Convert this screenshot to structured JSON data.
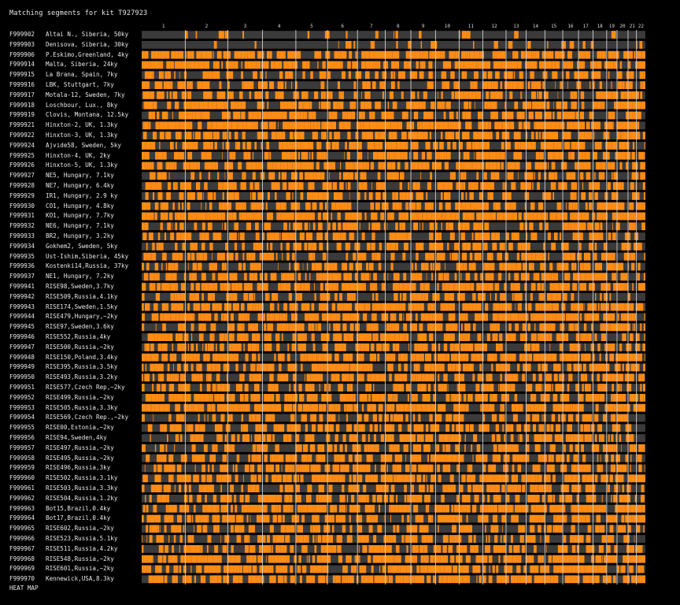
{
  "title": "Matching segments for kit T927923",
  "chromosome_labels": [
    "1",
    "2",
    "3",
    "4",
    "5",
    "6",
    "7",
    "8",
    "9",
    "10",
    "11",
    "12",
    "13",
    "14",
    "15",
    "16",
    "17",
    "18",
    "19",
    "20",
    "21",
    "22"
  ],
  "colors": {
    "match": "#ff8c14",
    "nomatch": "#3a3a3a",
    "background": "#000000",
    "chromosome_divider": "#cfcfcf",
    "heat_low": "#2a2ad8",
    "heat_high": "#d8305a"
  },
  "rows": [
    {
      "kit": "F999902",
      "name": "Altai N., Siberia, 50ky"
    },
    {
      "kit": "F999903",
      "name": "Denisova, Siberia, 30ky"
    },
    {
      "kit": "F999906",
      "name": "P.Eskimo,Greenland, 4ky"
    },
    {
      "kit": "F999914",
      "name": "Malta, Siberia, 24ky"
    },
    {
      "kit": "F999915",
      "name": "La Brana, Spain, 7ky"
    },
    {
      "kit": "F999916",
      "name": "LBK, Stuttgart, 7ky"
    },
    {
      "kit": "F999917",
      "name": "Motala-12, Sweden, 7ky"
    },
    {
      "kit": "F999918",
      "name": "Loschbour, Lux., 8ky"
    },
    {
      "kit": "F999919",
      "name": "Clovis, Montana, 12.5ky"
    },
    {
      "kit": "F999921",
      "name": "Hinxton-2, UK, 1.3ky"
    },
    {
      "kit": "F999922",
      "name": "Hinxton-3, UK, 1.3ky"
    },
    {
      "kit": "F999924",
      "name": "Ajvide58, Sweden, 5ky"
    },
    {
      "kit": "F999925",
      "name": "Hinxton-4, UK, 2ky"
    },
    {
      "kit": "F999926",
      "name": "Hinxton-5, UK, 1.3ky"
    },
    {
      "kit": "F999927",
      "name": "NE5, Hungary, 7.1ky"
    },
    {
      "kit": "F999928",
      "name": "NE7, Hungary, 6.4ky"
    },
    {
      "kit": "F999929",
      "name": "IR1, Hungary, 2.9 ky"
    },
    {
      "kit": "F999930",
      "name": "CO1, Hungary, 4.8ky"
    },
    {
      "kit": "F999931",
      "name": "KO1, Hungary, 7.7ky"
    },
    {
      "kit": "F999932",
      "name": "NE6, Hungary, 7.1ky"
    },
    {
      "kit": "F999933",
      "name": "BR2, Hungary, 3.2ky"
    },
    {
      "kit": "F999934",
      "name": "Gokhem2, Sweden, 5ky"
    },
    {
      "kit": "F999935",
      "name": "Ust-Ishim,Siberia, 45ky"
    },
    {
      "kit": "F999936",
      "name": "Kostenki14,Russia, 37ky"
    },
    {
      "kit": "F999937",
      "name": "NE1, Hungary, 7.2ky"
    },
    {
      "kit": "F999941",
      "name": "RISE98,Sweden,3.7ky"
    },
    {
      "kit": "F999942",
      "name": "RISE509,Russia,4.1ky"
    },
    {
      "kit": "F999943",
      "name": "RISE174,Sweden,1.5ky"
    },
    {
      "kit": "F999944",
      "name": "RISE479,Hungary,~2ky"
    },
    {
      "kit": "F999945",
      "name": "RISE97,Sweden,3.6ky"
    },
    {
      "kit": "F999946",
      "name": "RISE552,Russia,4ky"
    },
    {
      "kit": "F999947",
      "name": "RISE500,Russia,~2ky"
    },
    {
      "kit": "F999948",
      "name": "RISE150,Poland,3.4ky"
    },
    {
      "kit": "F999949",
      "name": "RISE395,Russia,3.5ky"
    },
    {
      "kit": "F999950",
      "name": "RISE493,Russia,3.2ky"
    },
    {
      "kit": "F999951",
      "name": "RISE577,Czech Rep,~2ky"
    },
    {
      "kit": "F999952",
      "name": "RISE499,Russia,~2ky"
    },
    {
      "kit": "F999953",
      "name": "RISE505,Russia,3.3ky"
    },
    {
      "kit": "F999954",
      "name": "RISE569,Czech Rep.,~2ky"
    },
    {
      "kit": "F999955",
      "name": "RISE00,Estonia,~2ky"
    },
    {
      "kit": "F999956",
      "name": "RISE94,Sweden,4ky"
    },
    {
      "kit": "F999957",
      "name": "RISE497,Russia,~2ky"
    },
    {
      "kit": "F999958",
      "name": "RISE495,Russia,~2ky"
    },
    {
      "kit": "F999959",
      "name": "RISE496,Russia,3ky"
    },
    {
      "kit": "F999960",
      "name": "RISE502,Russia,3.1ky"
    },
    {
      "kit": "F999961",
      "name": "RISE503,Russia,3.3ky"
    },
    {
      "kit": "F999962",
      "name": "RISE504,Russia,1.2ky"
    },
    {
      "kit": "F999963",
      "name": "Bot15,Brazil,0.4ky"
    },
    {
      "kit": "F999964",
      "name": "Bot17,Brazil,0.4ky"
    },
    {
      "kit": "F999965",
      "name": "RISE602,Russia,~2ky"
    },
    {
      "kit": "F999966",
      "name": "RISE523,Russia,5.1ky"
    },
    {
      "kit": "F999967",
      "name": "RISE511,Russia,4.2ky"
    },
    {
      "kit": "F999968",
      "name": "RISE548,Russia,~2ky"
    },
    {
      "kit": "F999969",
      "name": "RISE601,Russia,~2ky"
    },
    {
      "kit": "F999970",
      "name": "Kennewick,USA,8.3ky"
    }
  ],
  "heat_map_label": "HEAT MAP"
}
